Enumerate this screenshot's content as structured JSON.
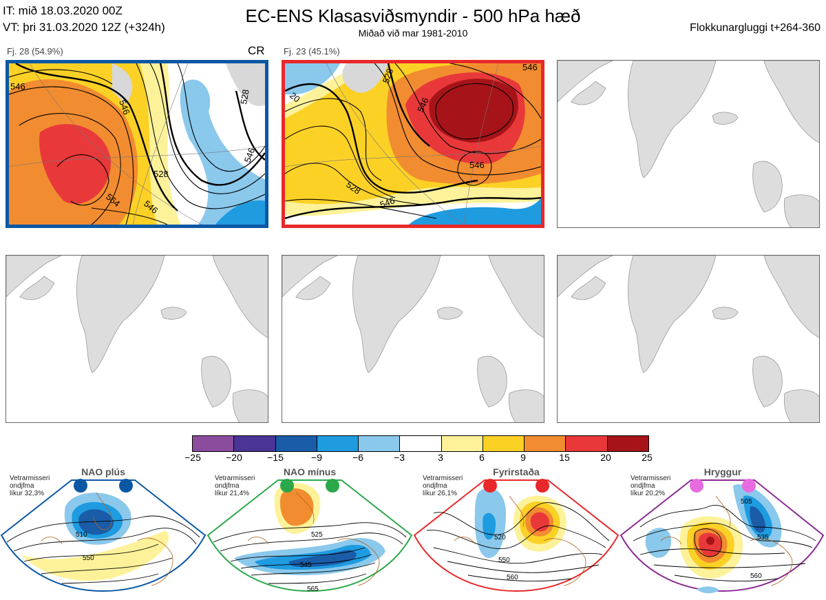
{
  "header": {
    "it": "IT: mið 18.03.2020 00Z",
    "vt": "VT: þri 31.03.2020 12Z  (+324h)",
    "title": "EC-ENS Klasasviðsmyndir - 500 hPa hæð",
    "subtitle": "Miðað við mar 1981-2010",
    "window": "Flokkunargluggi t+264-360"
  },
  "clusters": [
    {
      "label": "Fj. 28 (54.9%)",
      "code": "CR",
      "frame_color": "#0b57a4",
      "contours": [
        "546",
        "546",
        "528",
        "546",
        "564",
        "546",
        "528"
      ]
    },
    {
      "label": "Fj. 23 (45.1%)",
      "code": "",
      "frame_color": "#e8282a",
      "contours": [
        "20",
        "528",
        "546",
        "546",
        "528",
        "546",
        "546"
      ]
    }
  ],
  "colorbar": {
    "ticks": [
      "−25",
      "−20",
      "−15",
      "−9",
      "−6",
      "−3",
      "3",
      "6",
      "9",
      "15",
      "20",
      "25"
    ],
    "colors": [
      "#8b4c9e",
      "#4a3495",
      "#1a5ca8",
      "#1f9be0",
      "#8ac8ec",
      "#ffffff",
      "#fdf29a",
      "#fcd126",
      "#f28c30",
      "#e8383a",
      "#a61419"
    ]
  },
  "regimes": [
    {
      "name": "NAO plús",
      "season": "Vetrarmisseri",
      "type": "ondjfma",
      "prob": "líkur 32,3%",
      "color": "#0b57a4",
      "labels": [
        "510",
        "550"
      ]
    },
    {
      "name": "NAO mínus",
      "season": "Vetrarmisseri",
      "type": "ondjfma",
      "prob": "líkur 21,4%",
      "color": "#2ba84a",
      "labels": [
        "525",
        "545",
        "565"
      ]
    },
    {
      "name": "Fyrirstaða",
      "season": "Vetrarmisseri",
      "type": "ondjfma",
      "prob": "líkur 26,1%",
      "color": "#e8282a",
      "labels": [
        "520",
        "550",
        "560"
      ]
    },
    {
      "name": "Hryggur",
      "season": "Vetrarmisseri",
      "type": "ondjfma",
      "prob": "líkur 20,2%",
      "color": "#8b2a93",
      "labels": [
        "505",
        "535",
        "560"
      ]
    }
  ],
  "chart_data": {
    "type": "heatmap",
    "title": "EC-ENS Klasasviðsmyndir - 500 hPa hæð",
    "subtitle": "Miðað við mar 1981-2010",
    "legend_ticks": [
      -25,
      -20,
      -15,
      -9,
      -6,
      -3,
      3,
      6,
      9,
      15,
      20,
      25
    ],
    "clusters": [
      {
        "name": "Fj. 28",
        "members": 28,
        "percent": 54.9,
        "regime": "CR"
      },
      {
        "name": "Fj. 23",
        "members": 23,
        "percent": 45.1,
        "regime": ""
      }
    ],
    "regimes": [
      {
        "name": "NAO plús",
        "probability": 32.3
      },
      {
        "name": "NAO mínus",
        "probability": 21.4
      },
      {
        "name": "Fyrirstaða",
        "probability": 26.1
      },
      {
        "name": "Hryggur",
        "probability": 20.2
      }
    ]
  }
}
